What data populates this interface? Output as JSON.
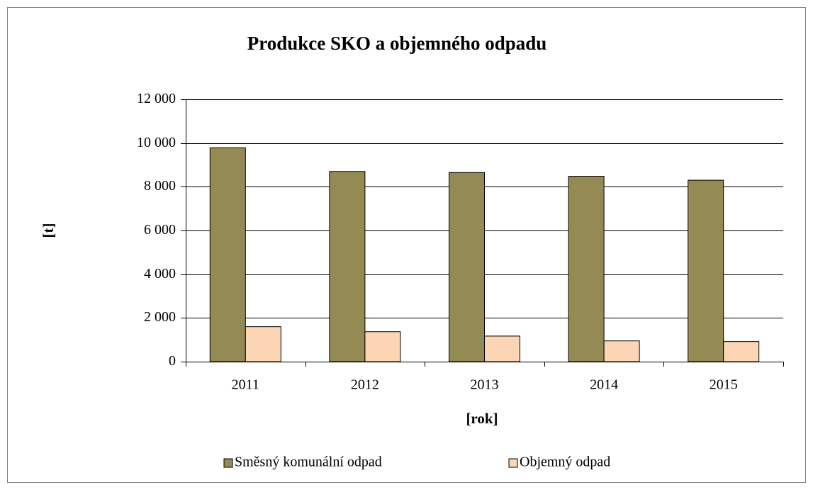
{
  "chart_data": {
    "type": "bar",
    "title": "Produkce SKO a objemného odpadu",
    "y_label": "[t]",
    "x_label": "[rok]",
    "categories": [
      "2011",
      "2012",
      "2013",
      "2014",
      "2015"
    ],
    "series": [
      {
        "name": "Směsný komunální odpad",
        "color": "#948a54",
        "values": [
          9780,
          8700,
          8650,
          8480,
          8300
        ]
      },
      {
        "name": "Objemný odpad",
        "color": "#fcd5b5",
        "values": [
          1600,
          1370,
          1170,
          950,
          920
        ]
      }
    ],
    "ylim": [
      0,
      12000
    ],
    "yticks": [
      0,
      {
        "value": 2000,
        "label": "2 000"
      },
      {
        "value": 4000,
        "label": "4 000"
      },
      {
        "value": 6000,
        "label": "6 000"
      },
      {
        "value": 8000,
        "label": "8 000"
      },
      {
        "value": 10000,
        "label": "10 000"
      },
      {
        "value": 12000,
        "label": "12 000"
      }
    ],
    "grid": true,
    "legend": "bottom"
  }
}
